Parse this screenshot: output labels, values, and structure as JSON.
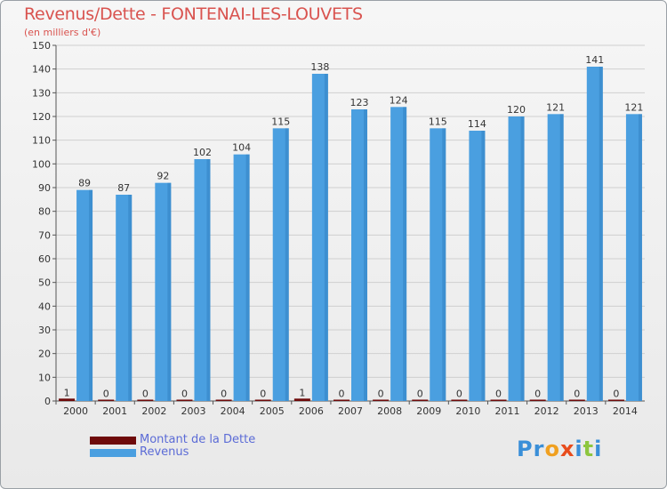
{
  "title": "Revenus/Dette - FONTENAI-LES-LOUVETS",
  "subtitle": "(en milliers d'€)",
  "logo": {
    "letters": [
      "P",
      "r",
      "o",
      "x",
      "i",
      "t",
      "i"
    ],
    "colors": [
      "#3a8fd8",
      "#3a8fd8",
      "#f0a020",
      "#e84c1c",
      "#3a8fd8",
      "#8dc63f",
      "#3a8fd8"
    ]
  },
  "colors": {
    "dette": "#6e0a0a",
    "revenus": "#4a9fe0",
    "title": "#d9534f",
    "axis_text": "#333333",
    "grid": "#cfcfcf"
  },
  "chart_data": {
    "type": "bar",
    "title": "Revenus/Dette - FONTENAI-LES-LOUVETS",
    "ylabel": "(en milliers d'€)",
    "xlabel": "",
    "ylim": [
      0,
      150
    ],
    "yticks": [
      0,
      10,
      20,
      30,
      40,
      50,
      60,
      70,
      80,
      90,
      100,
      110,
      120,
      130,
      140,
      150
    ],
    "categories": [
      "2000",
      "2001",
      "2002",
      "2003",
      "2004",
      "2005",
      "2006",
      "2007",
      "2008",
      "2009",
      "2010",
      "2011",
      "2012",
      "2013",
      "2014"
    ],
    "series": [
      {
        "name": "Montant de la Dette",
        "values": [
          1,
          0,
          0,
          0,
          0,
          0,
          1,
          0,
          0,
          0,
          0,
          0,
          0,
          0,
          0
        ]
      },
      {
        "name": "Revenus",
        "values": [
          89,
          87,
          92,
          102,
          104,
          115,
          138,
          123,
          124,
          115,
          114,
          120,
          121,
          141,
          121
        ]
      }
    ],
    "legend": "bottom-left",
    "grid": true
  }
}
